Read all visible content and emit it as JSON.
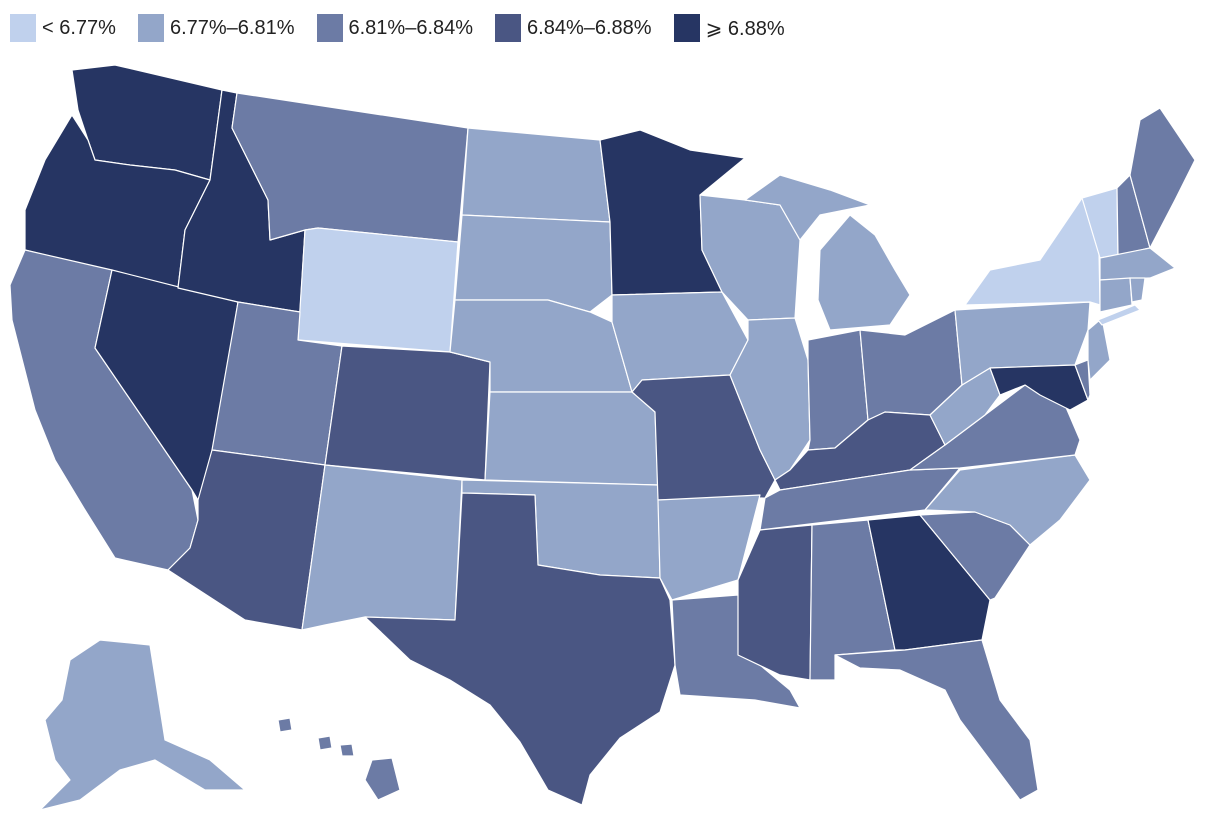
{
  "legend": {
    "bins": [
      {
        "label": "< 6.77%",
        "color": "#c0d1ed"
      },
      {
        "label": "6.77%–6.81%",
        "color": "#93a6c9"
      },
      {
        "label": "6.81%–6.84%",
        "color": "#6c7ba5"
      },
      {
        "label": "6.84%–6.88%",
        "color": "#4a5683"
      },
      {
        "label": "⩾ 6.88%",
        "color": "#263563"
      }
    ]
  },
  "states": [
    {
      "code": "WA",
      "bin": 4
    },
    {
      "code": "OR",
      "bin": 4
    },
    {
      "code": "CA",
      "bin": 2
    },
    {
      "code": "NV",
      "bin": 4
    },
    {
      "code": "ID",
      "bin": 4
    },
    {
      "code": "MT",
      "bin": 2
    },
    {
      "code": "WY",
      "bin": 0
    },
    {
      "code": "UT",
      "bin": 2
    },
    {
      "code": "AZ",
      "bin": 3
    },
    {
      "code": "CO",
      "bin": 3
    },
    {
      "code": "NM",
      "bin": 1
    },
    {
      "code": "ND",
      "bin": 1
    },
    {
      "code": "SD",
      "bin": 1
    },
    {
      "code": "NE",
      "bin": 1
    },
    {
      "code": "KS",
      "bin": 1
    },
    {
      "code": "OK",
      "bin": 1
    },
    {
      "code": "TX",
      "bin": 3
    },
    {
      "code": "MN",
      "bin": 4
    },
    {
      "code": "IA",
      "bin": 1
    },
    {
      "code": "MO",
      "bin": 3
    },
    {
      "code": "AR",
      "bin": 1
    },
    {
      "code": "LA",
      "bin": 2
    },
    {
      "code": "WI",
      "bin": 1
    },
    {
      "code": "IL",
      "bin": 1
    },
    {
      "code": "MI",
      "bin": 1
    },
    {
      "code": "IN",
      "bin": 2
    },
    {
      "code": "OH",
      "bin": 2
    },
    {
      "code": "KY",
      "bin": 3
    },
    {
      "code": "TN",
      "bin": 2
    },
    {
      "code": "MS",
      "bin": 3
    },
    {
      "code": "AL",
      "bin": 2
    },
    {
      "code": "GA",
      "bin": 4
    },
    {
      "code": "FL",
      "bin": 2
    },
    {
      "code": "SC",
      "bin": 2
    },
    {
      "code": "NC",
      "bin": 1
    },
    {
      "code": "VA",
      "bin": 2
    },
    {
      "code": "WV",
      "bin": 1
    },
    {
      "code": "MD",
      "bin": 4
    },
    {
      "code": "DE",
      "bin": 2
    },
    {
      "code": "NJ",
      "bin": 1
    },
    {
      "code": "PA",
      "bin": 1
    },
    {
      "code": "NY",
      "bin": 0
    },
    {
      "code": "VT",
      "bin": 0
    },
    {
      "code": "NH",
      "bin": 2
    },
    {
      "code": "ME",
      "bin": 2
    },
    {
      "code": "MA",
      "bin": 1
    },
    {
      "code": "CT",
      "bin": 1
    },
    {
      "code": "RI",
      "bin": 1
    },
    {
      "code": "AK",
      "bin": 1
    },
    {
      "code": "HI",
      "bin": 2
    }
  ]
}
